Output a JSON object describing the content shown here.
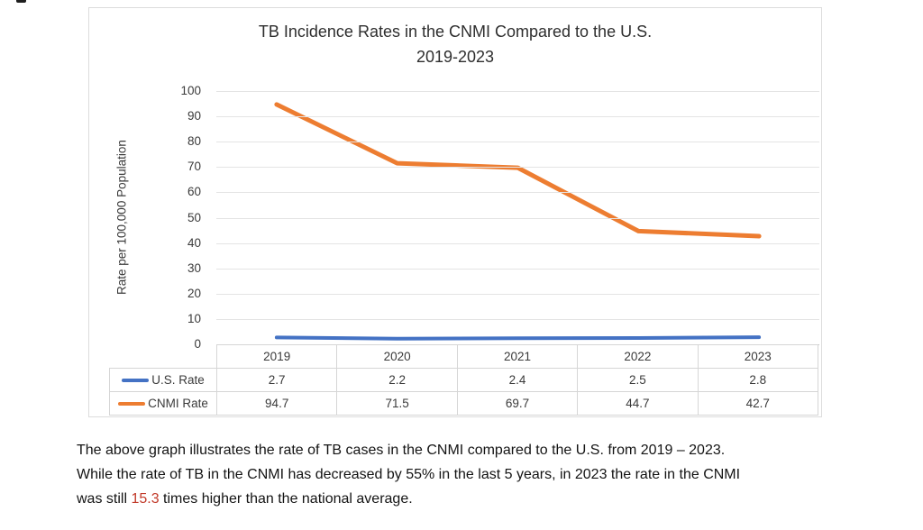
{
  "figure": {
    "title_line1": "TB Incidence Rates in the CNMI Compared to the U.S.",
    "title_line2": "2019-2023",
    "y_axis_title": "Rate per 100,000 Population"
  },
  "chart_data": {
    "type": "line",
    "title": "TB Incidence Rates in the CNMI Compared to the U.S. 2019-2023",
    "categories": [
      "2019",
      "2020",
      "2021",
      "2022",
      "2023"
    ],
    "series": [
      {
        "name": "U.S. Rate",
        "values": [
          2.7,
          2.2,
          2.4,
          2.5,
          2.8
        ],
        "color": "#4472C4"
      },
      {
        "name": "CNMI Rate",
        "values": [
          94.7,
          71.5,
          69.7,
          44.7,
          42.7
        ],
        "color": "#ED7D31"
      }
    ],
    "xlabel": "",
    "ylabel": "Rate per 100,000 Population",
    "ylim": [
      0,
      100
    ],
    "ytick_step": 10,
    "grid": true,
    "legend_position": "table-rows-left"
  },
  "caption": {
    "line1": "The above graph illustrates the rate of TB cases in the CNMI compared to the U.S. from 2019 – 2023.",
    "line2": "While the rate of TB in the CNMI has decreased by 55% in the last 5 years, in 2023 the rate in the CNMI",
    "line3_prefix": "was still ",
    "line3_highlight": "15.3",
    "line3_suffix": " times higher than the national average.",
    "highlight_color": "#C23B2B"
  },
  "colors": {
    "us_rate_line": "#4472C4",
    "cnmi_rate_line": "#ED7D31",
    "gridline": "#E4E4E4",
    "table_border": "#D6D6D6",
    "text": "#3A3A3A",
    "highlight_red": "#C23B2B"
  }
}
